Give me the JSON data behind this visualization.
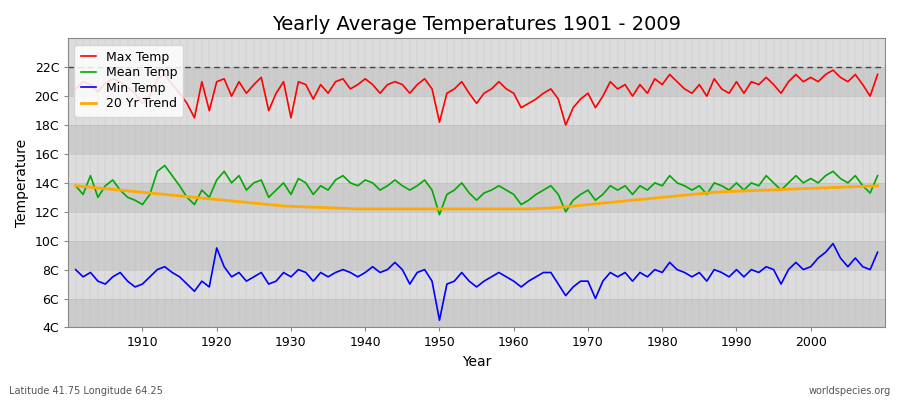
{
  "title": "Yearly Average Temperatures 1901 - 2009",
  "xlabel": "Year",
  "ylabel": "Temperature",
  "subtitle_left": "Latitude 41.75 Longitude 64.25",
  "subtitle_right": "worldspecies.org",
  "years": [
    1901,
    1902,
    1903,
    1904,
    1905,
    1906,
    1907,
    1908,
    1909,
    1910,
    1911,
    1912,
    1913,
    1914,
    1915,
    1916,
    1917,
    1918,
    1919,
    1920,
    1921,
    1922,
    1923,
    1924,
    1925,
    1926,
    1927,
    1928,
    1929,
    1930,
    1931,
    1932,
    1933,
    1934,
    1935,
    1936,
    1937,
    1938,
    1939,
    1940,
    1941,
    1942,
    1943,
    1944,
    1945,
    1946,
    1947,
    1948,
    1949,
    1950,
    1951,
    1952,
    1953,
    1954,
    1955,
    1956,
    1957,
    1958,
    1959,
    1960,
    1961,
    1962,
    1963,
    1964,
    1965,
    1966,
    1967,
    1968,
    1969,
    1970,
    1971,
    1972,
    1973,
    1974,
    1975,
    1976,
    1977,
    1978,
    1979,
    1980,
    1981,
    1982,
    1983,
    1984,
    1985,
    1986,
    1987,
    1988,
    1989,
    1990,
    1991,
    1992,
    1993,
    1994,
    1995,
    1996,
    1997,
    1998,
    1999,
    2000,
    2001,
    2002,
    2003,
    2004,
    2005,
    2006,
    2007,
    2008,
    2009
  ],
  "max_temp": [
    20.5,
    21.0,
    20.8,
    20.3,
    20.9,
    21.2,
    21.0,
    20.6,
    20.2,
    19.5,
    20.0,
    21.2,
    21.5,
    20.8,
    20.2,
    19.5,
    18.5,
    21.0,
    19.0,
    21.0,
    21.2,
    20.0,
    21.0,
    20.2,
    20.8,
    21.3,
    19.0,
    20.2,
    21.0,
    18.5,
    21.0,
    20.8,
    19.8,
    20.8,
    20.2,
    21.0,
    21.2,
    20.5,
    20.8,
    21.2,
    20.8,
    20.2,
    20.8,
    21.0,
    20.8,
    20.2,
    20.8,
    21.2,
    20.5,
    18.2,
    20.2,
    20.5,
    21.0,
    20.2,
    19.5,
    20.2,
    20.5,
    21.0,
    20.5,
    20.2,
    19.2,
    19.5,
    19.8,
    20.2,
    20.5,
    19.8,
    18.0,
    19.2,
    19.8,
    20.2,
    19.2,
    20.0,
    21.0,
    20.5,
    20.8,
    20.0,
    20.8,
    20.2,
    21.2,
    20.8,
    21.5,
    21.0,
    20.5,
    20.2,
    20.8,
    20.0,
    21.2,
    20.5,
    20.2,
    21.0,
    20.2,
    21.0,
    20.8,
    21.3,
    20.8,
    20.2,
    21.0,
    21.5,
    21.0,
    21.3,
    21.0,
    21.5,
    21.8,
    21.3,
    21.0,
    21.5,
    20.8,
    20.0,
    21.5
  ],
  "mean_temp": [
    13.8,
    13.2,
    14.5,
    13.0,
    13.8,
    14.2,
    13.5,
    13.0,
    12.8,
    12.5,
    13.2,
    14.8,
    15.2,
    14.5,
    13.8,
    13.0,
    12.5,
    13.5,
    13.0,
    14.2,
    14.8,
    14.0,
    14.5,
    13.5,
    14.0,
    14.2,
    13.0,
    13.5,
    14.0,
    13.2,
    14.3,
    14.0,
    13.2,
    13.8,
    13.5,
    14.2,
    14.5,
    14.0,
    13.8,
    14.2,
    14.0,
    13.5,
    13.8,
    14.2,
    13.8,
    13.5,
    13.8,
    14.2,
    13.5,
    11.8,
    13.2,
    13.5,
    14.0,
    13.3,
    12.8,
    13.3,
    13.5,
    13.8,
    13.5,
    13.2,
    12.5,
    12.8,
    13.2,
    13.5,
    13.8,
    13.2,
    12.0,
    12.8,
    13.2,
    13.5,
    12.8,
    13.2,
    13.8,
    13.5,
    13.8,
    13.2,
    13.8,
    13.5,
    14.0,
    13.8,
    14.5,
    14.0,
    13.8,
    13.5,
    13.8,
    13.2,
    14.0,
    13.8,
    13.5,
    14.0,
    13.5,
    14.0,
    13.8,
    14.5,
    14.0,
    13.5,
    14.0,
    14.5,
    14.0,
    14.3,
    14.0,
    14.5,
    14.8,
    14.3,
    14.0,
    14.5,
    13.8,
    13.3,
    14.5
  ],
  "min_temp": [
    8.0,
    7.5,
    7.8,
    7.2,
    7.0,
    7.5,
    7.8,
    7.2,
    6.8,
    7.0,
    7.5,
    8.0,
    8.2,
    7.8,
    7.5,
    7.0,
    6.5,
    7.2,
    6.8,
    9.5,
    8.2,
    7.5,
    7.8,
    7.2,
    7.5,
    7.8,
    7.0,
    7.2,
    7.8,
    7.5,
    8.0,
    7.8,
    7.2,
    7.8,
    7.5,
    7.8,
    8.0,
    7.8,
    7.5,
    7.8,
    8.2,
    7.8,
    8.0,
    8.5,
    8.0,
    7.0,
    7.8,
    8.0,
    7.2,
    4.5,
    7.0,
    7.2,
    7.8,
    7.2,
    6.8,
    7.2,
    7.5,
    7.8,
    7.5,
    7.2,
    6.8,
    7.2,
    7.5,
    7.8,
    7.8,
    7.0,
    6.2,
    6.8,
    7.2,
    7.2,
    6.0,
    7.2,
    7.8,
    7.5,
    7.8,
    7.2,
    7.8,
    7.5,
    8.0,
    7.8,
    8.5,
    8.0,
    7.8,
    7.5,
    7.8,
    7.2,
    8.0,
    7.8,
    7.5,
    8.0,
    7.5,
    8.0,
    7.8,
    8.2,
    8.0,
    7.0,
    8.0,
    8.5,
    8.0,
    8.2,
    8.8,
    9.2,
    9.8,
    8.8,
    8.2,
    8.8,
    8.2,
    8.0,
    9.2
  ],
  "trend_20yr": [
    13.8,
    13.75,
    13.7,
    13.65,
    13.6,
    13.55,
    13.5,
    13.45,
    13.4,
    13.35,
    13.3,
    13.25,
    13.2,
    13.15,
    13.1,
    13.05,
    13.0,
    12.95,
    12.9,
    12.85,
    12.8,
    12.75,
    12.7,
    12.65,
    12.6,
    12.55,
    12.5,
    12.45,
    12.4,
    12.38,
    12.36,
    12.34,
    12.32,
    12.3,
    12.28,
    12.26,
    12.24,
    12.22,
    12.2,
    12.2,
    12.2,
    12.2,
    12.2,
    12.2,
    12.2,
    12.2,
    12.2,
    12.2,
    12.2,
    12.2,
    12.2,
    12.2,
    12.2,
    12.2,
    12.2,
    12.2,
    12.2,
    12.2,
    12.2,
    12.2,
    12.2,
    12.2,
    12.22,
    12.24,
    12.26,
    12.3,
    12.35,
    12.4,
    12.45,
    12.5,
    12.55,
    12.6,
    12.65,
    12.7,
    12.75,
    12.8,
    12.85,
    12.9,
    12.95,
    13.0,
    13.05,
    13.1,
    13.15,
    13.2,
    13.25,
    13.3,
    13.35,
    13.38,
    13.4,
    13.42,
    13.44,
    13.46,
    13.48,
    13.5,
    13.52,
    13.54,
    13.56,
    13.58,
    13.6,
    13.62,
    13.64,
    13.66,
    13.68,
    13.7,
    13.72,
    13.74,
    13.76,
    13.78,
    13.8
  ],
  "max_color": "#ff0000",
  "mean_color": "#00aa00",
  "min_color": "#0000ff",
  "trend_color": "#ffaa00",
  "bg_color": "#ffffff",
  "band_colors": [
    "#cccccc",
    "#dddddd"
  ],
  "grid_line_color": "#bbbbbb",
  "ylim": [
    4,
    23
  ],
  "yticks": [
    4,
    6,
    8,
    10,
    12,
    14,
    16,
    18,
    20,
    22
  ],
  "ytick_labels": [
    "4C",
    "6C",
    "8C",
    "10C",
    "12C",
    "14C",
    "16C",
    "18C",
    "20C",
    "22C"
  ],
  "xlim_min": 1901,
  "xlim_max": 2009,
  "xticks": [
    1910,
    1920,
    1930,
    1940,
    1950,
    1960,
    1970,
    1980,
    1990,
    2000
  ],
  "title_fontsize": 14,
  "axis_label_fontsize": 10,
  "tick_fontsize": 9,
  "legend_fontsize": 9,
  "linewidth": 1.2,
  "trend_linewidth": 2.0,
  "dashed_line_y": 22
}
